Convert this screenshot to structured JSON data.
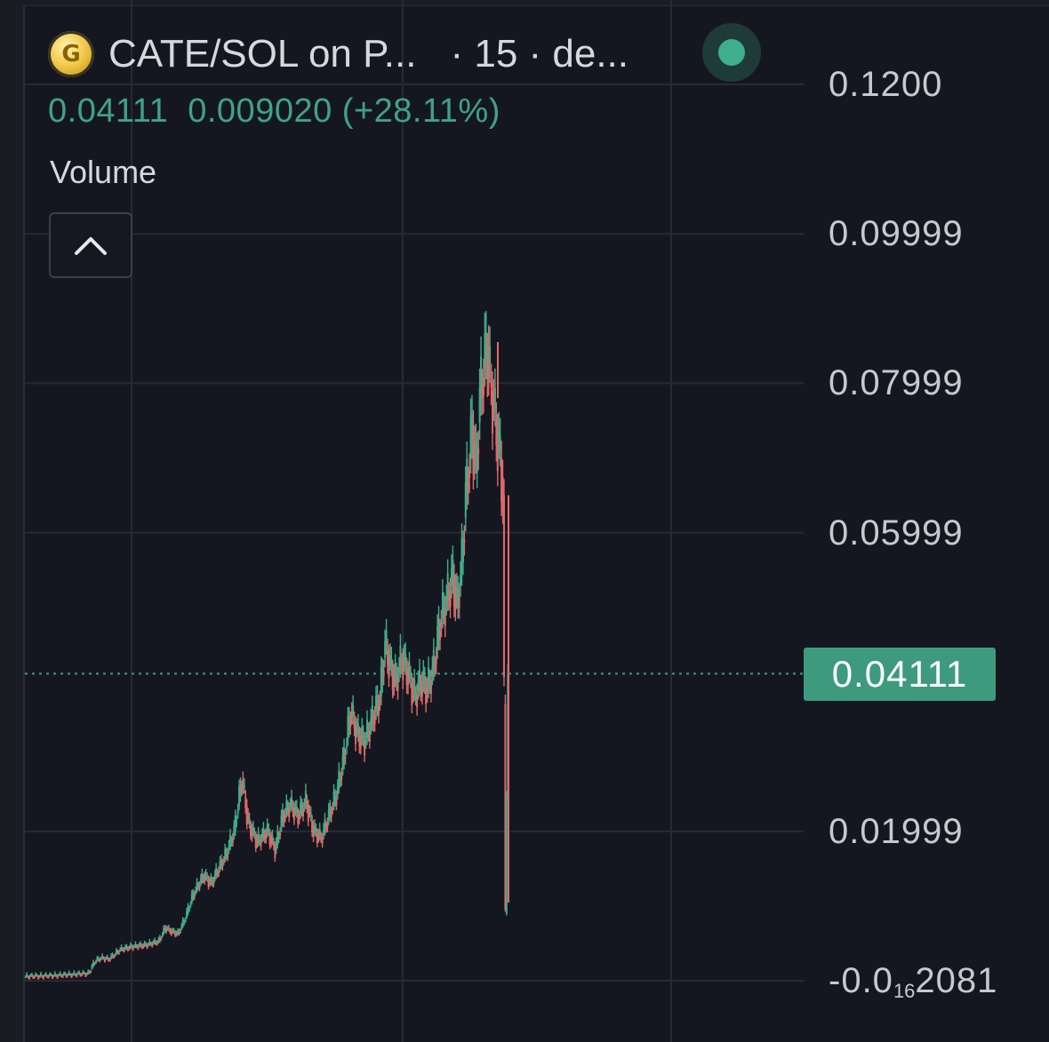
{
  "header": {
    "pair": "CATE/SOL on P...",
    "interval": "· 15 · de..."
  },
  "legend": {
    "open_value": "0.04111",
    "change": "0.009020 (+28.11%)",
    "volume_label": "Volume"
  },
  "price_badge": "0.04111",
  "y_axis": {
    "labels": [
      "0.1200",
      "0.09999",
      "0.07999",
      "0.05999",
      "0.04111",
      "0.01999"
    ],
    "bottom_label_main": "-0.0",
    "bottom_label_sub": "16",
    "bottom_label_tail": "2081"
  },
  "colors": {
    "background": "#151720",
    "up": "#3fae8a",
    "down": "#e0686a",
    "grid": "#272a35",
    "badge": "#3d9a7d",
    "status_dot": "#3fae8a"
  },
  "icons": {
    "logo": "gold-coin-icon",
    "collapse": "chevron-up-icon",
    "status": "live-status-dot"
  },
  "chart_data": {
    "type": "candlestick-line",
    "series": [
      {
        "values": [
          [
            0,
            0.0005
          ],
          [
            20,
            0.0006
          ],
          [
            40,
            0.0008
          ],
          [
            50,
            0.0009
          ],
          [
            55,
            0.0025
          ],
          [
            60,
            0.003
          ],
          [
            66,
            0.0028
          ],
          [
            75,
            0.0041
          ],
          [
            85,
            0.0045
          ],
          [
            95,
            0.0047
          ],
          [
            105,
            0.0052
          ],
          [
            110,
            0.007
          ],
          [
            115,
            0.0065
          ],
          [
            120,
            0.0062
          ],
          [
            125,
            0.008
          ],
          [
            132,
            0.0115
          ],
          [
            140,
            0.014
          ],
          [
            146,
            0.013
          ],
          [
            152,
            0.015
          ],
          [
            158,
            0.017
          ],
          [
            164,
            0.02
          ],
          [
            170,
            0.027
          ],
          [
            175,
            0.021
          ],
          [
            182,
            0.0185
          ],
          [
            190,
            0.02
          ],
          [
            196,
            0.0175
          ],
          [
            202,
            0.022
          ],
          [
            208,
            0.0235
          ],
          [
            214,
            0.022
          ],
          [
            220,
            0.024
          ],
          [
            226,
            0.02
          ],
          [
            232,
            0.019
          ],
          [
            238,
            0.022
          ],
          [
            244,
            0.025
          ],
          [
            250,
            0.03
          ],
          [
            255,
            0.036
          ],
          [
            260,
            0.033
          ],
          [
            266,
            0.032
          ],
          [
            272,
            0.035
          ],
          [
            278,
            0.038
          ],
          [
            282,
            0.045
          ],
          [
            286,
            0.042
          ],
          [
            290,
            0.04
          ],
          [
            295,
            0.043
          ],
          [
            300,
            0.041
          ],
          [
            305,
            0.038
          ],
          [
            310,
            0.04
          ],
          [
            315,
            0.039
          ],
          [
            320,
            0.042
          ],
          [
            325,
            0.048
          ],
          [
            330,
            0.051
          ],
          [
            335,
            0.054
          ],
          [
            338,
            0.05
          ],
          [
            342,
            0.056
          ],
          [
            345,
            0.065
          ],
          [
            348,
            0.07
          ],
          [
            350,
            0.074
          ],
          [
            353,
            0.068
          ],
          [
            356,
            0.078
          ],
          [
            359,
            0.082
          ],
          [
            362,
            0.085
          ],
          [
            364,
            0.08
          ],
          [
            366,
            0.078
          ],
          [
            368,
            0.075
          ],
          [
            370,
            0.072
          ],
          [
            372,
            0.07
          ],
          [
            374,
            0.065
          ],
          [
            376,
            0.009
          ],
          [
            378,
            0.041
          ]
        ]
      }
    ],
    "peak": 0.085,
    "crash_low": 0.009,
    "last_price": 0.04111,
    "ylim": [
      0.0,
      0.12
    ],
    "y_ticks": [
      0.12,
      0.09999,
      0.07999,
      0.05999,
      0.01999
    ],
    "grid": true
  }
}
